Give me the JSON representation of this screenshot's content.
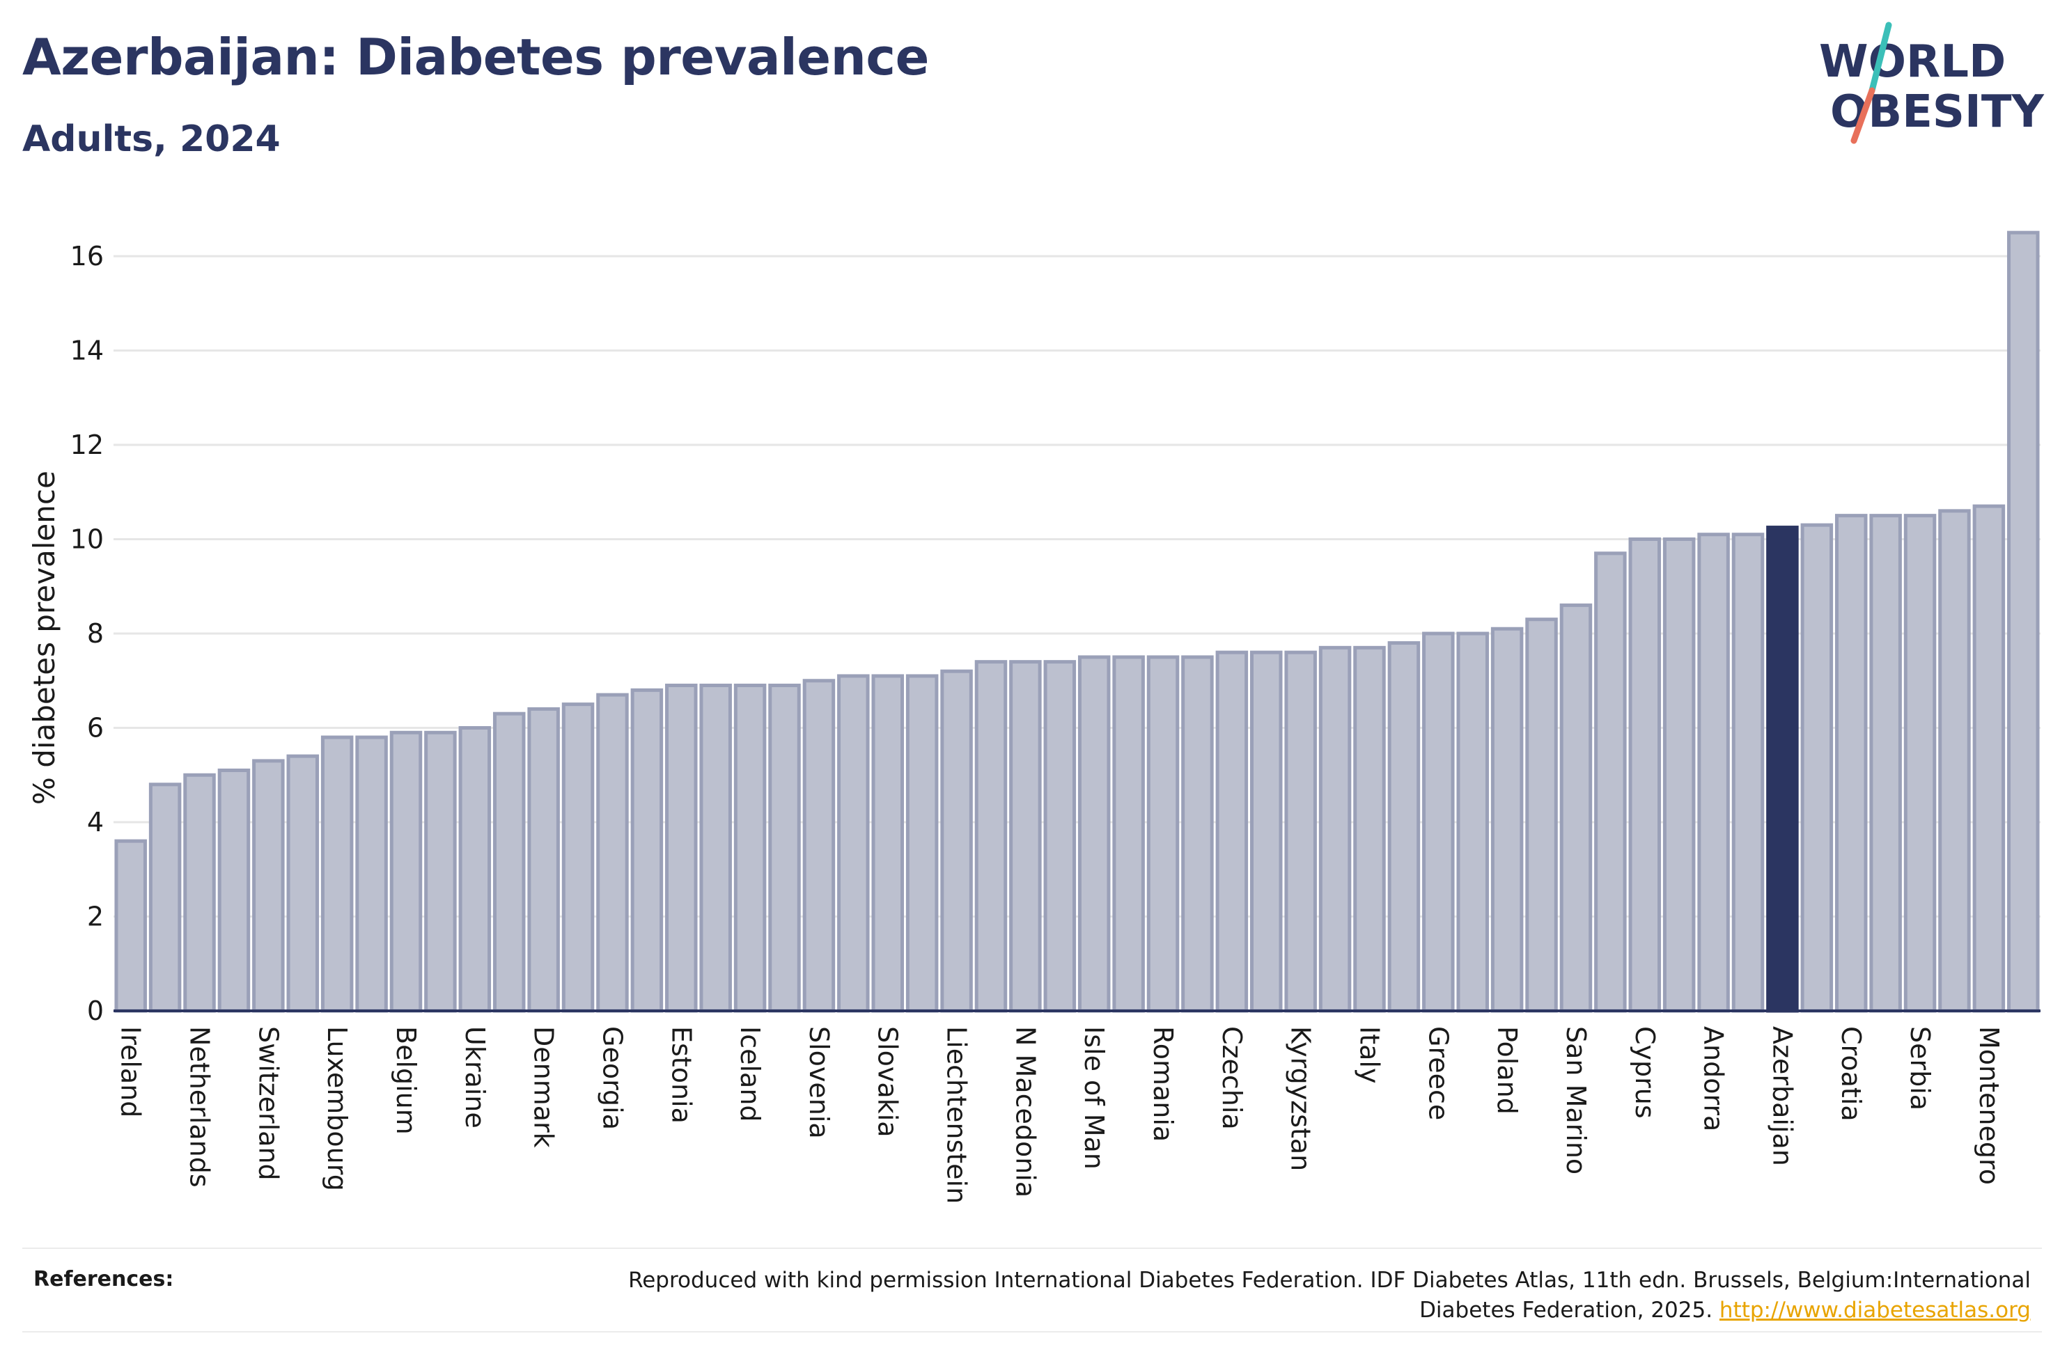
{
  "header": {
    "title": "Azerbaijan: Diabetes prevalence",
    "subtitle": "Adults, 2024"
  },
  "logo": {
    "line1": "WORLD",
    "line2": "OBESITY",
    "text_color": "#2b3561",
    "slash_colors": [
      "#3bbfb8",
      "#e8705a"
    ]
  },
  "chart_data": {
    "type": "bar",
    "ylabel": "% diabetes prevalence",
    "xlabel": "",
    "ylim": [
      0,
      17
    ],
    "yticks": [
      0,
      2,
      4,
      6,
      8,
      10,
      12,
      14,
      16
    ],
    "grid": true,
    "highlight": "Azerbaijan",
    "colors": {
      "bar": "#bcc0cf",
      "bar_edge": "#9aa0b8",
      "highlight": "#2b3561",
      "grid": "#e6e6e6",
      "axis": "#2b3561"
    },
    "categories": [
      "Ireland",
      "",
      "Netherlands",
      "",
      "Switzerland",
      "",
      "Luxembourg",
      "",
      "Belgium",
      "",
      "Ukraine",
      "",
      "Denmark",
      "",
      "Georgia",
      "",
      "Estonia",
      "",
      "Iceland",
      "",
      "Slovenia",
      "",
      "Slovakia",
      "",
      "Liechtenstein",
      "",
      "N Macedonia",
      "",
      "Isle of Man",
      "",
      "Romania",
      "",
      "Czechia",
      "",
      "Kyrgyzstan",
      "",
      "Italy",
      "",
      "Greece",
      "",
      "Poland",
      "",
      "San Marino",
      "",
      "Cyprus",
      "",
      "Andorra",
      "",
      "Azerbaijan",
      "",
      "Croatia",
      "",
      "Serbia",
      "",
      "Montenegro",
      ""
    ],
    "values": [
      3.6,
      4.8,
      5.0,
      5.1,
      5.3,
      5.4,
      5.8,
      5.8,
      5.9,
      5.9,
      6.0,
      6.3,
      6.4,
      6.5,
      6.7,
      6.8,
      6.9,
      6.9,
      6.9,
      6.9,
      7.0,
      7.1,
      7.1,
      7.1,
      7.2,
      7.4,
      7.4,
      7.4,
      7.5,
      7.5,
      7.5,
      7.5,
      7.6,
      7.6,
      7.6,
      7.7,
      7.7,
      7.8,
      8.0,
      8.0,
      8.1,
      8.3,
      8.6,
      9.7,
      10.0,
      10.0,
      10.1,
      10.1,
      10.25,
      10.3,
      10.5,
      10.5,
      10.5,
      10.6,
      10.7,
      16.5
    ]
  },
  "references": {
    "label": "References:",
    "text": "Reproduced with kind permission International Diabetes Federation. IDF Diabetes Atlas, 11th edn. Brussels, Belgium:International Diabetes Federation, 2025. ",
    "link_text": "http://www.diabetesatlas.org"
  }
}
